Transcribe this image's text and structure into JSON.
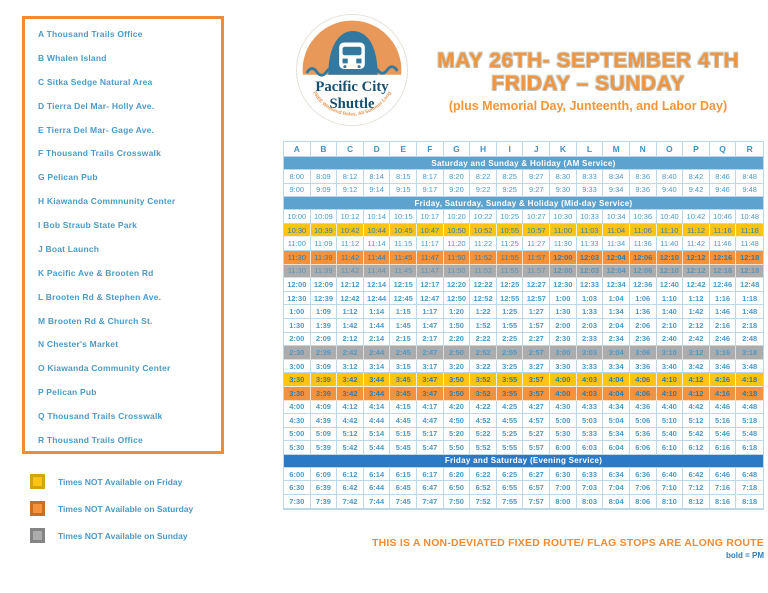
{
  "header": {
    "title_line1": "MAY 26TH- SEPTEMBER 4TH",
    "title_line2": "FRIDAY – SUNDAY",
    "subtitle": "(plus Memorial Day, Junteenth, and Labor Day)",
    "logo": {
      "line1": "Pacific City",
      "line2": "Shuttle",
      "tagline": "FREE Weekend Rides, All Summer Long"
    }
  },
  "stops": [
    "A Thousand Trails Office",
    "B Whalen Island",
    "C Sitka Sedge Natural Area",
    "D Tierra Del Mar- Holly Ave.",
    "E Tierra Del Mar- Gage Ave.",
    "F Thousand Trails Crosswalk",
    "G Pelican Pub",
    "H Kiawanda Commnunity Center",
    "I Bob Straub State Park",
    "J Boat Launch",
    "K Pacific Ave & Brooten Rd",
    "L Brooten Rd & Stephen Ave.",
    "M Brooten Rd & Church St.",
    "N Chester's Market",
    "O Kiawanda Community Center",
    "P Pelican Pub",
    "Q Thousand Trails Crosswalk",
    "R Thousand Trails Office"
  ],
  "legend": [
    {
      "label": "Times NOT Available on Friday",
      "color": "#FFC412",
      "border": "#D4A511"
    },
    {
      "label": "Times NOT Available on Saturday",
      "color": "#F5923E",
      "border": "#C96F22"
    },
    {
      "label": "Times NOT Available on Sunday",
      "color": "#ACACAC",
      "border": "#848484"
    }
  ],
  "schedule": {
    "columns": [
      "A",
      "B",
      "C",
      "D",
      "E",
      "F",
      "G",
      "H",
      "I",
      "J",
      "K",
      "L",
      "M",
      "N",
      "O",
      "P",
      "Q",
      "R"
    ],
    "sections": [
      {
        "title": "Saturday and Sunday & Holiday (AM Service)",
        "band": "light",
        "rows": [
          {
            "variant": "white",
            "bold_from": 18,
            "times": [
              "8:00",
              "8:09",
              "8:12",
              "8:14",
              "8:15",
              "8:17",
              "8:20",
              "8:22",
              "8:25",
              "8:27",
              "8:30",
              "8:33",
              "8:34",
              "8:36",
              "8:40",
              "8:42",
              "8:46",
              "8:48"
            ]
          },
          {
            "variant": "white",
            "bold_from": 18,
            "times": [
              "9:00",
              "9:09",
              "9:12",
              "9:14",
              "9:15",
              "9:17",
              "9:20",
              "9:22",
              "9:25",
              "9:27",
              "9:30",
              "9:33",
              "9:34",
              "9:36",
              "9:40",
              "9:42",
              "9:46",
              "9:48"
            ]
          }
        ]
      },
      {
        "title": "Friday, Saturday, Sunday & Holiday (Mid-day Service)",
        "band": "light",
        "rows": [
          {
            "variant": "white",
            "bold_from": 18,
            "times": [
              "10:00",
              "10:09",
              "10:12",
              "10:14",
              "10:15",
              "10:17",
              "10:20",
              "10:22",
              "10:25",
              "10:27",
              "10:30",
              "10:33",
              "10:34",
              "10:36",
              "10:40",
              "10:42",
              "10:46",
              "10:48"
            ]
          },
          {
            "variant": "yellow",
            "bold_from": 18,
            "times": [
              "10:30",
              "10:39",
              "10:42",
              "10:44",
              "10:45",
              "10:47",
              "10:50",
              "10:52",
              "10:55",
              "10:57",
              "11:00",
              "11:03",
              "11:04",
              "11:06",
              "11:10",
              "11:12",
              "11:16",
              "11:18"
            ]
          },
          {
            "variant": "white",
            "bold_from": 18,
            "times": [
              "11:00",
              "11:09",
              "11:12",
              "11:14",
              "11:15",
              "11:17",
              "11:20",
              "11:22",
              "11:25",
              "11:27",
              "11:30",
              "11:33",
              "11:34",
              "11:36",
              "11:40",
              "11:42",
              "11:46",
              "11:48"
            ]
          },
          {
            "variant": "orange",
            "bold_from": 10,
            "times": [
              "11:30",
              "11:39",
              "11:42",
              "11:44",
              "11:45",
              "11:47",
              "11:50",
              "11:52",
              "11:55",
              "11:57",
              "12:00",
              "12:03",
              "12:04",
              "12:06",
              "12:10",
              "12:12",
              "12:16",
              "12:18"
            ]
          },
          {
            "variant": "gray",
            "bold_from": 10,
            "times": [
              "11:30",
              "11:39",
              "11:42",
              "11:44",
              "11:45",
              "11:47",
              "11:50",
              "11:52",
              "11:55",
              "11:57",
              "12:00",
              "12:03",
              "12:04",
              "12:06",
              "12:10",
              "12:12",
              "12:16",
              "12:18"
            ]
          },
          {
            "variant": "white",
            "bold_from": 0,
            "times": [
              "12:00",
              "12:09",
              "12:12",
              "12:14",
              "12:15",
              "12:17",
              "12:20",
              "12:22",
              "12:25",
              "12:27",
              "12:30",
              "12:33",
              "12:34",
              "12:36",
              "12:40",
              "12:42",
              "12:46",
              "12:48"
            ]
          },
          {
            "variant": "white",
            "bold_from": 0,
            "times": [
              "12:30",
              "12:39",
              "12:42",
              "12:44",
              "12:45",
              "12:47",
              "12:50",
              "12:52",
              "12:55",
              "12:57",
              "1:00",
              "1:03",
              "1:04",
              "1:06",
              "1:10",
              "1:12",
              "1:16",
              "1:18"
            ]
          },
          {
            "variant": "white",
            "bold_from": 0,
            "times": [
              "1:00",
              "1:09",
              "1:12",
              "1:14",
              "1:15",
              "1:17",
              "1:20",
              "1:22",
              "1:25",
              "1:27",
              "1:30",
              "1:33",
              "1:34",
              "1:36",
              "1:40",
              "1:42",
              "1:46",
              "1:48"
            ]
          },
          {
            "variant": "white",
            "bold_from": 0,
            "times": [
              "1:30",
              "1:39",
              "1:42",
              "1:44",
              "1:45",
              "1:47",
              "1:50",
              "1:52",
              "1:55",
              "1:57",
              "2:00",
              "2:03",
              "2:04",
              "2:06",
              "2:10",
              "2:12",
              "2:16",
              "2:18"
            ]
          },
          {
            "variant": "white",
            "bold_from": 0,
            "times": [
              "2:00",
              "2:09",
              "2:12",
              "2:14",
              "2:15",
              "2:17",
              "2:20",
              "2:22",
              "2:25",
              "2:27",
              "2:30",
              "2:33",
              "2:34",
              "2:36",
              "2:40",
              "2:42",
              "2:46",
              "2:48"
            ]
          },
          {
            "variant": "gray",
            "bold_from": 0,
            "times": [
              "2:30",
              "2:39",
              "2:42",
              "2:44",
              "2:45",
              "2:47",
              "2:50",
              "2:52",
              "2:55",
              "2:57",
              "3:00",
              "3:03",
              "3:04",
              "3:06",
              "3:10",
              "3:12",
              "3:16",
              "3:18"
            ]
          },
          {
            "variant": "white",
            "bold_from": 0,
            "times": [
              "3:00",
              "3:09",
              "3:12",
              "3:14",
              "3:15",
              "3:17",
              "3:20",
              "3:22",
              "3:25",
              "3:27",
              "3:30",
              "3:33",
              "3:34",
              "3:36",
              "3:40",
              "3:42",
              "3:46",
              "3:48"
            ]
          },
          {
            "variant": "yellow",
            "bold_from": 0,
            "times": [
              "3:30",
              "3:39",
              "3:42",
              "3:44",
              "3:45",
              "3:47",
              "3:50",
              "3:52",
              "3:55",
              "3:57",
              "4:00",
              "4:03",
              "4:04",
              "4:06",
              "4:10",
              "4:12",
              "4:16",
              "4:18"
            ]
          },
          {
            "variant": "orange",
            "bold_from": 0,
            "times": [
              "3:30",
              "3:39",
              "3:42",
              "3:44",
              "3:45",
              "3:47",
              "3:50",
              "3:52",
              "3:55",
              "3:57",
              "4:00",
              "4:03",
              "4:04",
              "4:06",
              "4:10",
              "4:12",
              "4:16",
              "4:18"
            ]
          },
          {
            "variant": "white",
            "bold_from": 0,
            "times": [
              "4:00",
              "4:09",
              "4:12",
              "4:14",
              "4:15",
              "4:17",
              "4:20",
              "4:22",
              "4:25",
              "4:27",
              "4:30",
              "4:33",
              "4:34",
              "4:36",
              "4:40",
              "4:42",
              "4:46",
              "4:48"
            ]
          },
          {
            "variant": "white",
            "bold_from": 0,
            "times": [
              "4:30",
              "4:39",
              "4:42",
              "4:44",
              "4:45",
              "4:47",
              "4:50",
              "4:52",
              "4:55",
              "4:57",
              "5:00",
              "5:03",
              "5:04",
              "5:06",
              "5:10",
              "5:12",
              "5:16",
              "5:18"
            ]
          },
          {
            "variant": "white",
            "bold_from": 0,
            "times": [
              "5:00",
              "5:09",
              "5:12",
              "5:14",
              "5:15",
              "5:17",
              "5:20",
              "5:22",
              "5:25",
              "5:27",
              "5:30",
              "5:33",
              "5:34",
              "5:36",
              "5:40",
              "5:42",
              "5:46",
              "5:48"
            ]
          },
          {
            "variant": "white",
            "bold_from": 0,
            "times": [
              "5:30",
              "5:39",
              "5:42",
              "5:44",
              "5:45",
              "5:47",
              "5:50",
              "5:52",
              "5:55",
              "5:57",
              "6:00",
              "6:03",
              "6:04",
              "6:06",
              "6:10",
              "6:12",
              "6:16",
              "6:18"
            ]
          }
        ]
      },
      {
        "title": "Friday and Saturday (Evening Service)",
        "band": "dark",
        "rows": [
          {
            "variant": "white",
            "bold_from": 0,
            "times": [
              "6:00",
              "6:09",
              "6:12",
              "6:14",
              "6:15",
              "6:17",
              "6:20",
              "6:22",
              "6:25",
              "6:27",
              "6:30",
              "6:33",
              "6:34",
              "6:36",
              "6:40",
              "6:42",
              "6:46",
              "6:48"
            ]
          },
          {
            "variant": "white",
            "bold_from": 0,
            "times": [
              "6:30",
              "6:39",
              "6:42",
              "6:44",
              "6:45",
              "6:47",
              "6:50",
              "6:52",
              "6:55",
              "6:57",
              "7:00",
              "7:03",
              "7:04",
              "7:06",
              "7:10",
              "7:12",
              "7:16",
              "7:18"
            ]
          },
          {
            "variant": "white",
            "bold_from": 0,
            "times": [
              "7:30",
              "7:39",
              "7:42",
              "7:44",
              "7:45",
              "7:47",
              "7:50",
              "7:52",
              "7:55",
              "7:57",
              "8:00",
              "8:03",
              "8:04",
              "8:06",
              "8:10",
              "8:12",
              "8:16",
              "8:18"
            ]
          }
        ]
      }
    ]
  },
  "footer": {
    "note": "THIS IS A NON-DEVIATED FIXED ROUTE/ FLAG STOPS ARE ALONG ROUTE",
    "bold_note": "bold = PM"
  },
  "colors": {
    "accent_orange": "#F08C38",
    "text_blue": "#4A9BC9",
    "band_blue": "#5EA3D0",
    "band_dark_blue": "#2B7AC7",
    "not_friday_yellow": "#FFC412",
    "not_saturday_orange": "#F5923E",
    "not_sunday_gray": "#ACACAC"
  }
}
